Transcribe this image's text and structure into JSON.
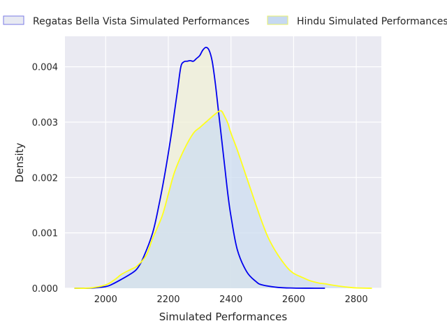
{
  "chart_data": {
    "type": "area",
    "title": "",
    "xlabel": "Simulated Performances",
    "ylabel": "Density",
    "xlim": [
      1870,
      2880
    ],
    "ylim": [
      0,
      0.00455
    ],
    "x_ticks": [
      2000,
      2200,
      2400,
      2600,
      2800
    ],
    "x_tick_labels": [
      "2000",
      "2200",
      "2400",
      "2600",
      "2800"
    ],
    "y_ticks": [
      0,
      0.001,
      0.002,
      0.003,
      0.004
    ],
    "y_tick_labels": [
      "0.000",
      "0.001",
      "0.002",
      "0.003",
      "0.004"
    ],
    "grid": true,
    "legend_position": "top",
    "series": [
      {
        "name": "Regatas Bella Vista Simulated Performances",
        "line_color": "#0000ee",
        "fill_color": "#f0f0d6",
        "legend_fill": "#e8eaf2",
        "legend_edge": "#7a7ae6",
        "x": [
          1900,
          1950,
          2000,
          2020,
          2050,
          2080,
          2100,
          2120,
          2150,
          2170,
          2190,
          2210,
          2220,
          2230,
          2240,
          2250,
          2260,
          2270,
          2280,
          2290,
          2300,
          2310,
          2320,
          2330,
          2340,
          2350,
          2360,
          2370,
          2380,
          2390,
          2400,
          2420,
          2450,
          2480,
          2500,
          2550,
          2600,
          2650,
          2700
        ],
        "y": [
          0.0,
          2e-06,
          3e-05,
          7e-05,
          0.00016,
          0.00026,
          0.00035,
          0.00055,
          0.001,
          0.0015,
          0.0021,
          0.0028,
          0.0032,
          0.0036,
          0.004,
          0.00409,
          0.0041,
          0.00411,
          0.0041,
          0.00415,
          0.0042,
          0.0043,
          0.00435,
          0.0043,
          0.0041,
          0.0037,
          0.0032,
          0.0027,
          0.0022,
          0.0017,
          0.0013,
          0.0007,
          0.0003,
          0.00012,
          6e-05,
          1.5e-05,
          3e-06,
          5e-07,
          0.0
        ]
      },
      {
        "name": "Hindu Simulated Performances",
        "line_color": "#ffff1a",
        "fill_color": "#cdddf0",
        "legend_fill": "#c6d9f1",
        "legend_edge": "#e8f06a",
        "x": [
          1900,
          1950,
          2000,
          2030,
          2050,
          2080,
          2100,
          2130,
          2150,
          2180,
          2200,
          2220,
          2250,
          2280,
          2300,
          2320,
          2340,
          2360,
          2370,
          2380,
          2390,
          2400,
          2420,
          2450,
          2480,
          2500,
          2520,
          2550,
          2580,
          2600,
          2630,
          2650,
          2680,
          2700,
          2720,
          2750,
          2780,
          2800,
          2850
        ],
        "y": [
          0.0,
          5e-06,
          6e-05,
          0.00016,
          0.00025,
          0.00034,
          0.0004,
          0.0006,
          0.0009,
          0.0013,
          0.0017,
          0.0021,
          0.0025,
          0.0028,
          0.0029,
          0.003,
          0.0031,
          0.00319,
          0.0032,
          0.0031,
          0.00298,
          0.0028,
          0.0025,
          0.002,
          0.0015,
          0.00118,
          0.0009,
          0.0006,
          0.00037,
          0.00027,
          0.00019,
          0.00014,
          9.5e-05,
          8e-05,
          6e-05,
          3.5e-05,
          1.5e-05,
          6e-06,
          0.0
        ]
      }
    ]
  }
}
